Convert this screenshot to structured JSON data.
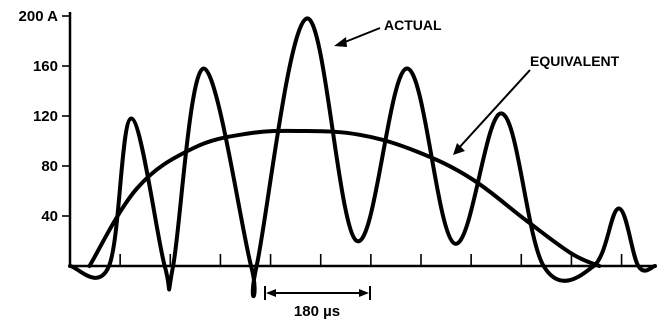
{
  "chart_data": {
    "type": "line",
    "title": "",
    "xlabel": "",
    "ylabel": "",
    "ylim": [
      0,
      200
    ],
    "yticks": [
      {
        "value": 40,
        "label": "40"
      },
      {
        "value": 80,
        "label": "80"
      },
      {
        "value": 120,
        "label": "120"
      },
      {
        "value": 160,
        "label": "160"
      },
      {
        "value": 200,
        "label": "200 A"
      }
    ],
    "scale_bar": {
      "label": "180 µs",
      "length_us": 180
    },
    "x_tick_spacing_us": 90,
    "xlim_us": [
      0,
      1050
    ],
    "grid": false,
    "series": [
      {
        "name": "ACTUAL",
        "description_points_us_A": [
          [
            0,
            0
          ],
          [
            70,
            0
          ],
          [
            110,
            118
          ],
          [
            170,
            0
          ],
          [
            185,
            0
          ],
          [
            240,
            158
          ],
          [
            325,
            0
          ],
          [
            335,
            0
          ],
          [
            425,
            198
          ],
          [
            515,
            20
          ],
          [
            605,
            158
          ],
          [
            690,
            18
          ],
          [
            775,
            122
          ],
          [
            850,
            0
          ],
          [
            940,
            0
          ],
          [
            985,
            46
          ],
          [
            1020,
            0
          ],
          [
            1050,
            0
          ]
        ],
        "x": [
          0,
          70,
          110,
          170,
          185,
          240,
          325,
          335,
          425,
          515,
          605,
          690,
          775,
          850,
          940,
          985,
          1020,
          1050
        ],
        "values": [
          0,
          0,
          118,
          0,
          0,
          158,
          0,
          0,
          198,
          20,
          158,
          18,
          122,
          0,
          0,
          46,
          0,
          0
        ]
      },
      {
        "name": "EQUIVALENT",
        "x": [
          35,
          120,
          220,
          320,
          420,
          520,
          620,
          720,
          820,
          900,
          950
        ],
        "values": [
          0,
          62,
          94,
          106,
          108,
          105,
          92,
          70,
          36,
          10,
          0
        ]
      }
    ],
    "annotations": [
      {
        "text": "ACTUAL",
        "target_series": "ACTUAL"
      },
      {
        "text": "EQUIVALENT",
        "target_series": "EQUIVALENT"
      }
    ]
  }
}
